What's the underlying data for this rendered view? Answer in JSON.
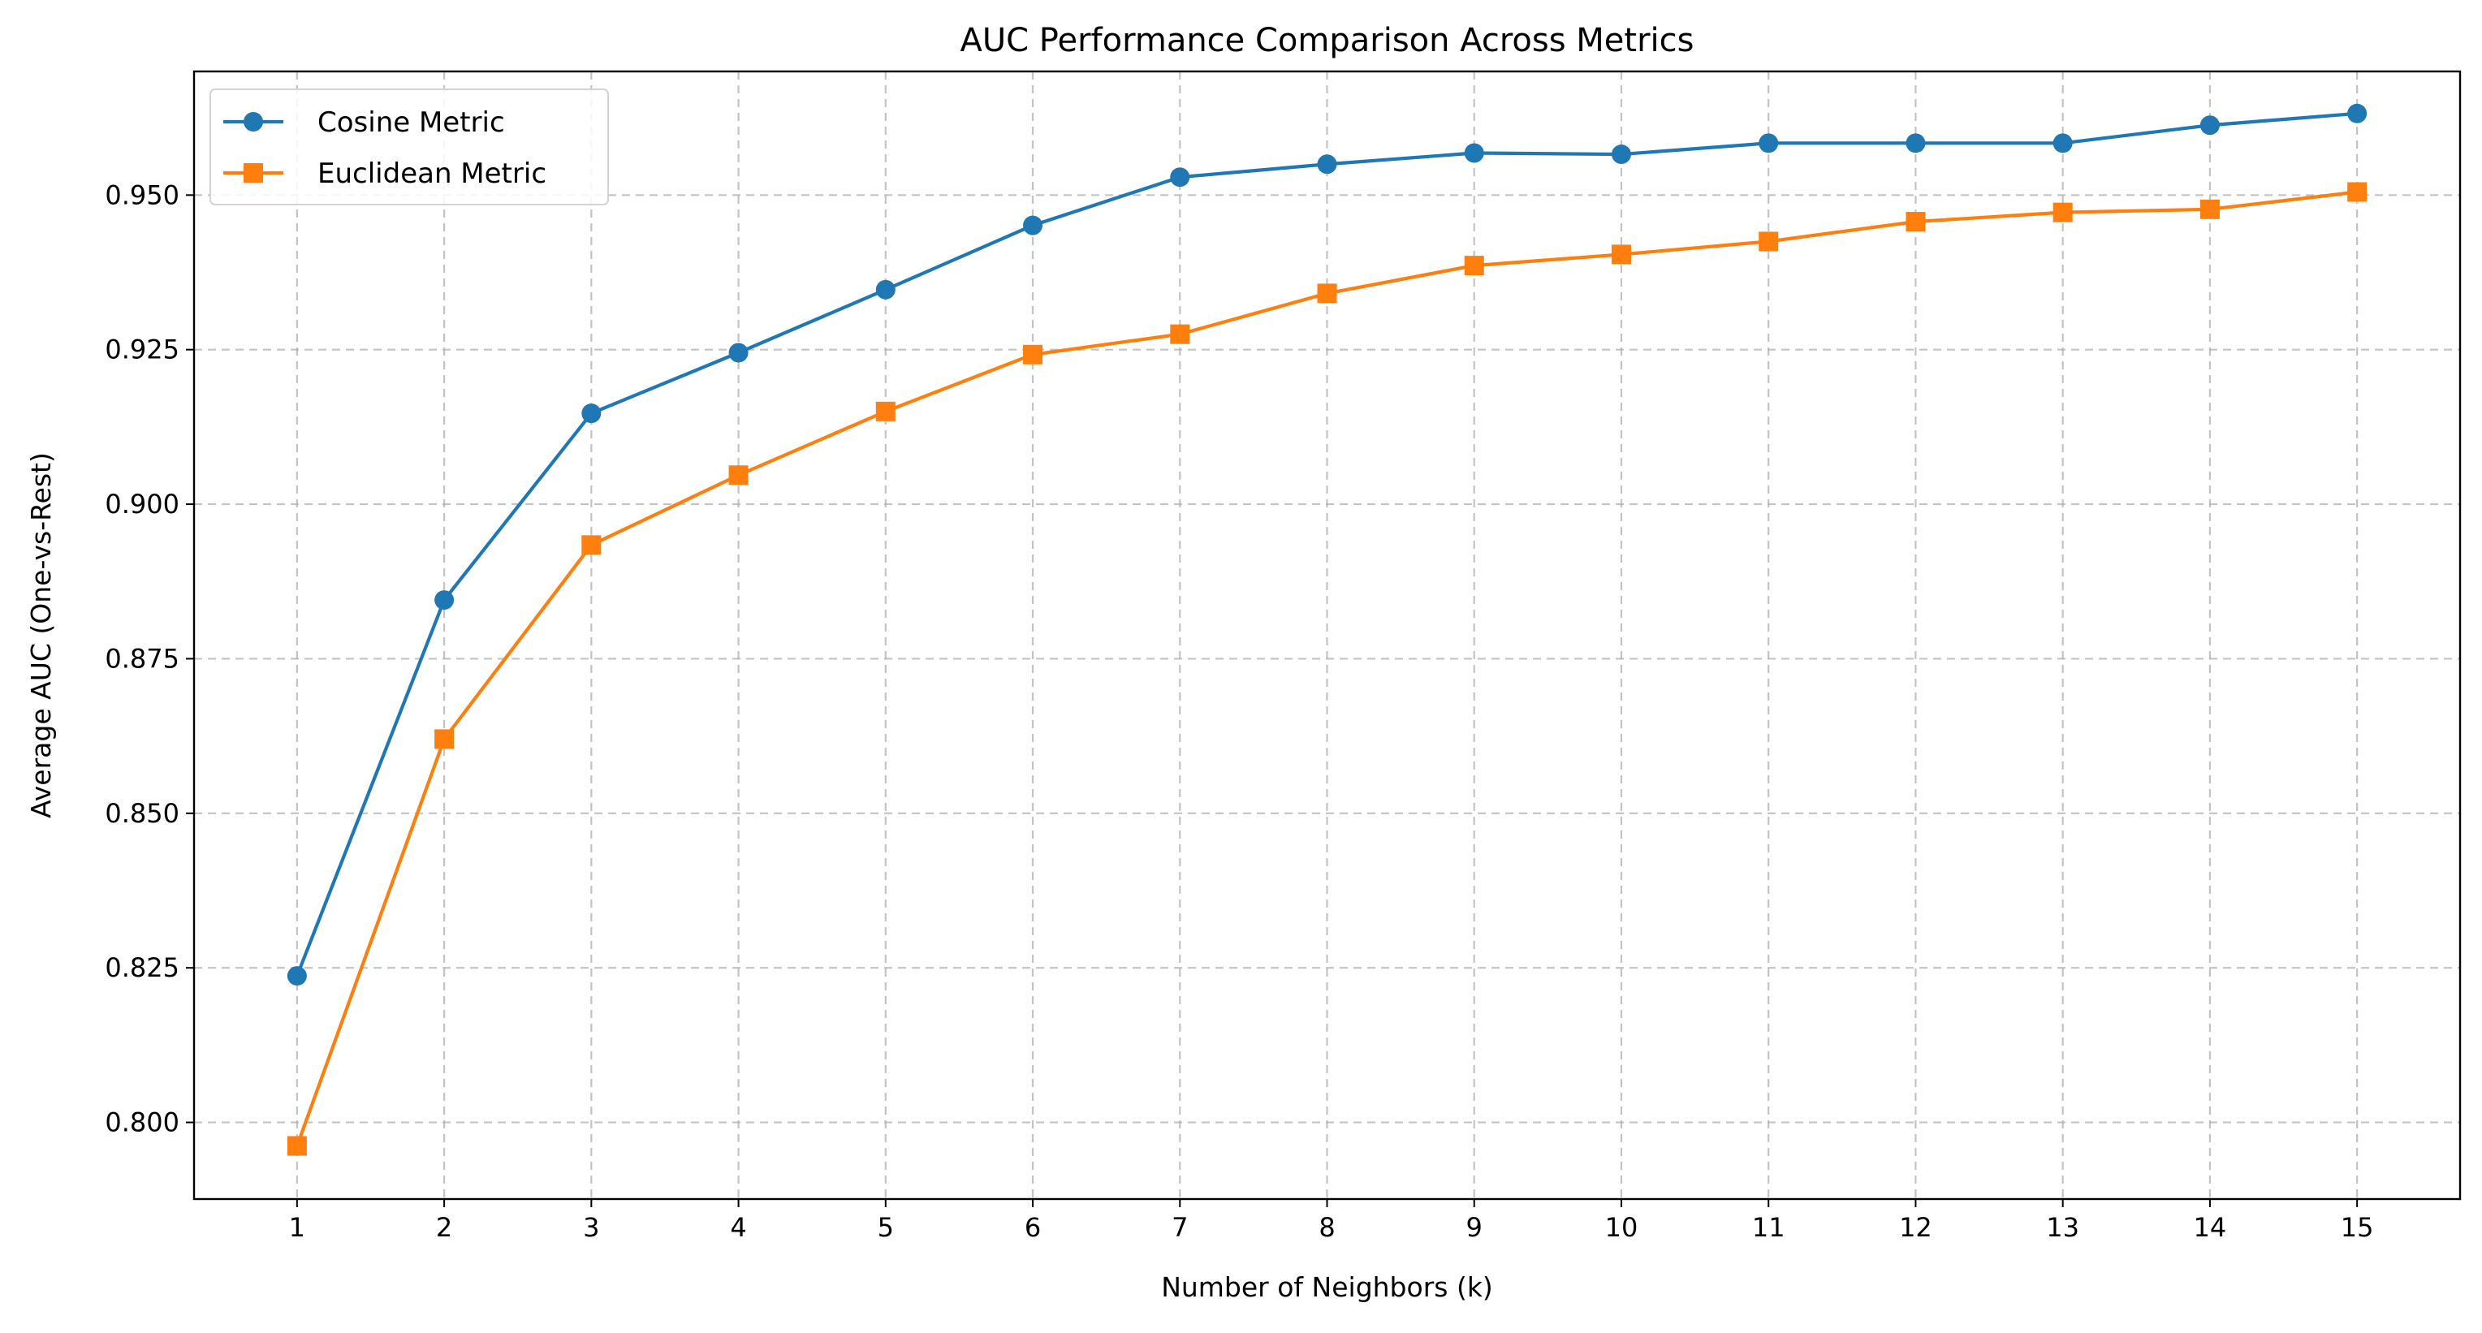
{
  "chart_data": {
    "type": "line",
    "title": "AUC Performance Comparison Across Metrics",
    "xlabel": "Number of Neighbors (k)",
    "ylabel": "Average AUC (One-vs-Rest)",
    "x": [
      1,
      2,
      3,
      4,
      5,
      6,
      7,
      8,
      9,
      10,
      11,
      12,
      13,
      14,
      15
    ],
    "x_tick_labels": [
      "1",
      "2",
      "3",
      "4",
      "5",
      "6",
      "7",
      "8",
      "9",
      "10",
      "11",
      "12",
      "13",
      "14",
      "15"
    ],
    "y_ticks": [
      0.8,
      0.825,
      0.85,
      0.875,
      0.9,
      0.925,
      0.95
    ],
    "y_tick_labels": [
      "0.800",
      "0.825",
      "0.850",
      "0.875",
      "0.900",
      "0.925",
      "0.950"
    ],
    "xlim": [
      0.3,
      15.7
    ],
    "ylim": [
      0.7876,
      0.97
    ],
    "grid": true,
    "legend_position": "top-left",
    "series": [
      {
        "name": "Cosine Metric",
        "color": "#1f77b4",
        "marker": "circle",
        "values": [
          0.8237,
          0.8845,
          0.9147,
          0.9245,
          0.9347,
          0.9451,
          0.9529,
          0.955,
          0.9568,
          0.9566,
          0.9584,
          0.9584,
          0.9584,
          0.9613,
          0.9632
        ]
      },
      {
        "name": "Euclidean Metric",
        "color": "#ff7f0e",
        "marker": "square",
        "values": [
          0.7962,
          0.862,
          0.8934,
          0.9047,
          0.915,
          0.9242,
          0.9275,
          0.9341,
          0.9386,
          0.9404,
          0.9425,
          0.9457,
          0.9472,
          0.9477,
          0.9505
        ]
      }
    ]
  }
}
